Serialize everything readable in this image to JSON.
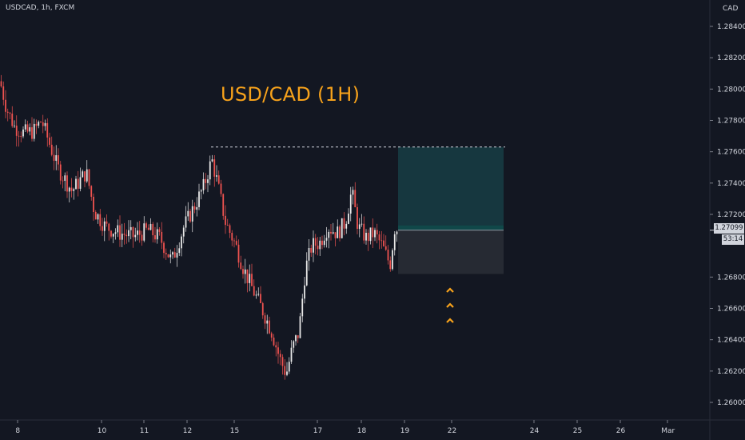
{
  "header": {
    "symbol": "USDCAD, 1h, FXCM",
    "currency": "CAD"
  },
  "title": "USD/CAD (1H)",
  "last_price": "1.27099",
  "countdown": "53:14",
  "colors": {
    "background": "#131722",
    "up_candle": "#e8e8e8",
    "down_candle": "#ef5350",
    "title": "#f7a21b",
    "target_zone": "#16373f",
    "stop_zone": "#262a33"
  },
  "chart_data": {
    "type": "candlestick",
    "y_ticks": [
      "1.28400",
      "1.28200",
      "1.28000",
      "1.27800",
      "1.27600",
      "1.27400",
      "1.27200",
      "1.26800",
      "1.26600",
      "1.26400",
      "1.26200",
      "1.26000"
    ],
    "x_ticks": [
      "8",
      "10",
      "11",
      "12",
      "15",
      "17",
      "18",
      "19",
      "22",
      "24",
      "25",
      "26",
      "Mar"
    ],
    "ylim": [
      1.2585,
      1.2853
    ],
    "path_points": [
      [
        0,
        1.2805
      ],
      [
        8,
        1.2788
      ],
      [
        18,
        1.2776
      ],
      [
        30,
        1.2772
      ],
      [
        42,
        1.2773
      ],
      [
        52,
        1.278
      ],
      [
        60,
        1.2768
      ],
      [
        72,
        1.275
      ],
      [
        90,
        1.2735
      ],
      [
        108,
        1.2747
      ],
      [
        118,
        1.2722
      ],
      [
        132,
        1.2712
      ],
      [
        150,
        1.2708
      ],
      [
        168,
        1.2706
      ],
      [
        185,
        1.271
      ],
      [
        200,
        1.2705
      ],
      [
        215,
        1.269
      ],
      [
        230,
        1.2712
      ],
      [
        245,
        1.2727
      ],
      [
        255,
        1.2738
      ],
      [
        265,
        1.2755
      ],
      [
        272,
        1.274
      ],
      [
        282,
        1.2715
      ],
      [
        295,
        1.27
      ],
      [
        305,
        1.2685
      ],
      [
        318,
        1.267
      ],
      [
        330,
        1.2657
      ],
      [
        340,
        1.2645
      ],
      [
        350,
        1.2628
      ],
      [
        358,
        1.2618
      ],
      [
        366,
        1.2635
      ],
      [
        374,
        1.2645
      ],
      [
        382,
        1.2685
      ],
      [
        390,
        1.27
      ],
      [
        400,
        1.2702
      ],
      [
        410,
        1.2712
      ],
      [
        422,
        1.2708
      ],
      [
        432,
        1.2715
      ],
      [
        440,
        1.2735
      ],
      [
        448,
        1.2712
      ],
      [
        458,
        1.2705
      ],
      [
        468,
        1.2708
      ],
      [
        478,
        1.27
      ],
      [
        488,
        1.2688
      ],
      [
        494,
        1.2712
      ],
      [
        498,
        1.271
      ]
    ],
    "resistance_level": 1.2763,
    "entry_price": 1.27099,
    "take_profit": 1.2763,
    "stop_loss": 1.2682,
    "position_bars": [
      498,
      630
    ]
  }
}
